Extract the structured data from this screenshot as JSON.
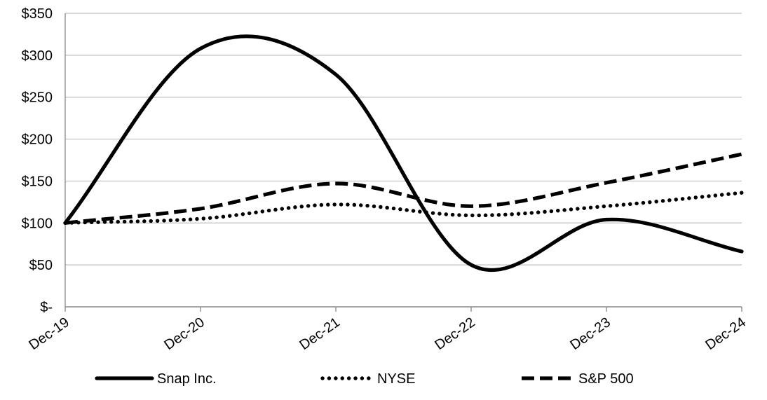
{
  "chart_data": {
    "type": "line",
    "title": "",
    "xlabel": "",
    "ylabel": "",
    "categories": [
      "Dec-19",
      "Dec-20",
      "Dec-21",
      "Dec-22",
      "Dec-23",
      "Dec-24"
    ],
    "series": [
      {
        "name": "Snap Inc.",
        "style": "solid",
        "values": [
          100,
          308,
          277,
          50,
          104,
          66
        ]
      },
      {
        "name": "NYSE",
        "style": "dotted",
        "values": [
          100,
          105,
          122,
          109,
          120,
          136
        ]
      },
      {
        "name": "S&P 500",
        "style": "dashed",
        "values": [
          100,
          117,
          147,
          120,
          148,
          182
        ]
      }
    ],
    "y_ticks": [
      "$350",
      "$300",
      "$250",
      "$200",
      "$150",
      "$100",
      "$50",
      "$-"
    ],
    "y_tick_values": [
      350,
      300,
      250,
      200,
      150,
      100,
      50,
      0
    ],
    "ylim": [
      0,
      350
    ],
    "grid": true,
    "smoothed_lines": true,
    "legend_position": "bottom",
    "colors": {
      "line": "#000000",
      "gridline": "#bfbfbf",
      "axis": "#8e8e8e",
      "background": "#ffffff"
    }
  }
}
